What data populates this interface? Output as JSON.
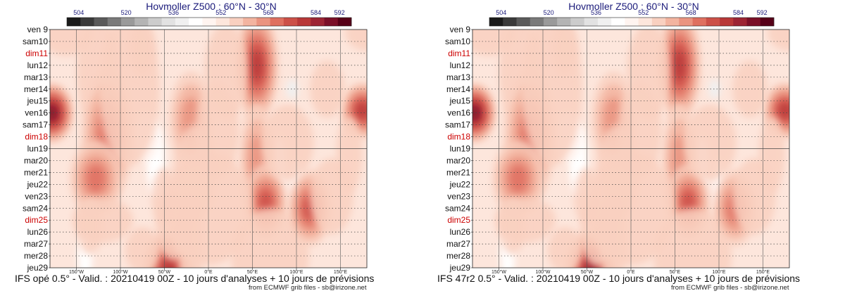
{
  "colors": {
    "weekday": "#111111",
    "sunday": "#cc0000",
    "title": "#1a1a7a",
    "scale": [
      "#1a1a1a",
      "#3a3a3a",
      "#5a5a5a",
      "#7a7a7a",
      "#9a9a9a",
      "#b4b4b4",
      "#cccccc",
      "#e2e2e2",
      "#f0f0f0",
      "#ffffff",
      "#fff4f0",
      "#fde6dc",
      "#f9d0c0",
      "#f3b4a0",
      "#ea9480",
      "#df7060",
      "#cc5048",
      "#b83838",
      "#9c2434",
      "#7a0f28",
      "#560018"
    ]
  },
  "icons": [
    "colorbar-icon"
  ],
  "chart_data": [
    {
      "type": "heatmap",
      "title": "Hovmoller Z500 : 60°N - 30°N",
      "caption": "IFS opé 0.5° - Valid. : 20210419 00Z - 10 jours d'analyses + 10 jours de prévisions",
      "credit": "from ECMWF grib files - sb@irizone.net",
      "colorbar": {
        "ticks": [
          504,
          520,
          536,
          552,
          568,
          584,
          592
        ],
        "range": [
          500,
          596
        ]
      },
      "xaxis": {
        "ticks": [
          "150°W",
          "100°W",
          "50°W",
          "0°E",
          "50°E",
          "100°E",
          "150°E"
        ],
        "tick_values": [
          -150,
          -100,
          -50,
          0,
          50,
          100,
          150
        ],
        "range": [
          -180,
          180
        ]
      },
      "yaxis": {
        "labels": [
          "ven 9",
          "sam10",
          "dim11",
          "lun12",
          "mar13",
          "mer14",
          "jeu15",
          "ven16",
          "sam17",
          "dim18",
          "lun19",
          "mar20",
          "mer21",
          "jeu22",
          "ven23",
          "sam24",
          "dim25",
          "lun26",
          "mar27",
          "mer28",
          "jeu29"
        ],
        "sundays": [
          "dim11",
          "dim18",
          "dim25"
        ],
        "divider_after": "lun19"
      },
      "blobs": [
        {
          "lon": -162,
          "day": 0.3,
          "rl": 12,
          "rd": 1.2,
          "v": 10
        },
        {
          "lon": -178,
          "day": 7.0,
          "rl": 10,
          "rd": 1.6,
          "v": 19
        },
        {
          "lon": -125,
          "day": 3.5,
          "rl": 10,
          "rd": 3.0,
          "v": 12
        },
        {
          "lon": -115,
          "day": 9.0,
          "rl": 12,
          "rd": 3.5,
          "v": 15
        },
        {
          "lon": -128,
          "day": 12.5,
          "rl": 12,
          "rd": 2.0,
          "v": 15
        },
        {
          "lon": -90,
          "day": 5.0,
          "rl": 14,
          "rd": 4.0,
          "v": 7
        },
        {
          "lon": -120,
          "day": 16.0,
          "rl": 14,
          "rd": 1.2,
          "v": 12
        },
        {
          "lon": -75,
          "day": 1.5,
          "rl": 6,
          "rd": 1.5,
          "v": 12
        },
        {
          "lon": -20,
          "day": 7.5,
          "rl": 10,
          "rd": 2.5,
          "v": 14
        },
        {
          "lon": -15,
          "day": 12.0,
          "rl": 10,
          "rd": 2.5,
          "v": 12
        },
        {
          "lon": -45,
          "day": 20.0,
          "rl": 12,
          "rd": 2.0,
          "v": 17
        },
        {
          "lon": -40,
          "day": 16.5,
          "rl": 8,
          "rd": 1.8,
          "v": 11
        },
        {
          "lon": -20,
          "day": 18.0,
          "rl": 6,
          "rd": 2.5,
          "v": 10
        },
        {
          "lon": 55,
          "day": 3.0,
          "rl": 10,
          "rd": 3.0,
          "v": 17
        },
        {
          "lon": 55,
          "day": 11.0,
          "rl": 8,
          "rd": 3.0,
          "v": 14
        },
        {
          "lon": 65,
          "day": 14.5,
          "rl": 10,
          "rd": 2.0,
          "v": 16
        },
        {
          "lon": 70,
          "day": 19.0,
          "rl": 18,
          "rd": 2.5,
          "v": 12
        },
        {
          "lon": 115,
          "day": 15.0,
          "rl": 10,
          "rd": 2.0,
          "v": 16
        },
        {
          "lon": 175,
          "day": 6.8,
          "rl": 10,
          "rd": 1.5,
          "v": 17
        },
        {
          "lon": 160,
          "day": 10.5,
          "rl": 6,
          "rd": 2.0,
          "v": 11
        },
        {
          "lon": 20,
          "day": 3.5,
          "rl": 10,
          "rd": 2.5,
          "v": 10
        },
        {
          "lon": 10,
          "day": 8.5,
          "rl": 10,
          "rd": 2.5,
          "v": 11
        },
        {
          "lon": 0,
          "day": 15.0,
          "rl": 20,
          "rd": 3.0,
          "v": 9
        },
        {
          "lon": 135,
          "day": 5.0,
          "rl": 8,
          "rd": 1.5,
          "v": 7
        },
        {
          "lon": 140,
          "day": 14.0,
          "rl": 10,
          "rd": 2.0,
          "v": 6
        },
        {
          "lon": -135,
          "day": 16.5,
          "rl": 6,
          "rd": 1.5,
          "v": 8
        },
        {
          "lon": -50,
          "day": 14.0,
          "rl": 6,
          "rd": 1.5,
          "v": 8
        },
        {
          "lon": -75,
          "day": 18.5,
          "rl": 8,
          "rd": 1.2,
          "v": 7
        },
        {
          "lon": 90,
          "day": 9.5,
          "rl": 12,
          "rd": 2.0,
          "v": 8
        },
        {
          "lon": 180,
          "day": 0.2,
          "rl": 10,
          "rd": 1.0,
          "v": 8
        }
      ]
    },
    {
      "type": "heatmap",
      "title": "Hovmoller Z500 : 60°N - 30°N",
      "caption": "IFS 47r2 0.5° - Valid. : 20210419 00Z - 10 jours d'analyses + 10 jours de prévisions",
      "credit": "from ECMWF grib files - sb@irizone.net",
      "colorbar": {
        "ticks": [
          504,
          520,
          536,
          552,
          568,
          584,
          592
        ],
        "range": [
          500,
          596
        ]
      },
      "xaxis": {
        "ticks": [
          "150°W",
          "100°W",
          "50°W",
          "0°E",
          "50°E",
          "100°E",
          "150°E"
        ],
        "tick_values": [
          -150,
          -100,
          -50,
          0,
          50,
          100,
          150
        ],
        "range": [
          -180,
          180
        ]
      },
      "yaxis": {
        "labels": [
          "ven 9",
          "sam10",
          "dim11",
          "lun12",
          "mar13",
          "mer14",
          "jeu15",
          "ven16",
          "sam17",
          "dim18",
          "lun19",
          "mar20",
          "mer21",
          "jeu22",
          "ven23",
          "sam24",
          "dim25",
          "lun26",
          "mar27",
          "mer28",
          "jeu29"
        ],
        "sundays": [
          "dim11",
          "dim18",
          "dim25"
        ],
        "divider_after": "lun19"
      },
      "blobs": [
        {
          "lon": -162,
          "day": 0.3,
          "rl": 12,
          "rd": 1.2,
          "v": 10
        },
        {
          "lon": -178,
          "day": 7.0,
          "rl": 10,
          "rd": 1.6,
          "v": 19
        },
        {
          "lon": -125,
          "day": 3.5,
          "rl": 10,
          "rd": 3.0,
          "v": 12
        },
        {
          "lon": -115,
          "day": 9.0,
          "rl": 12,
          "rd": 3.5,
          "v": 15
        },
        {
          "lon": -128,
          "day": 12.5,
          "rl": 12,
          "rd": 2.0,
          "v": 15
        },
        {
          "lon": -90,
          "day": 5.0,
          "rl": 14,
          "rd": 4.0,
          "v": 7
        },
        {
          "lon": -120,
          "day": 16.0,
          "rl": 14,
          "rd": 1.2,
          "v": 12
        },
        {
          "lon": -75,
          "day": 1.5,
          "rl": 6,
          "rd": 1.5,
          "v": 12
        },
        {
          "lon": -20,
          "day": 7.5,
          "rl": 10,
          "rd": 2.5,
          "v": 14
        },
        {
          "lon": -15,
          "day": 12.0,
          "rl": 10,
          "rd": 2.5,
          "v": 12
        },
        {
          "lon": -45,
          "day": 20.0,
          "rl": 12,
          "rd": 2.0,
          "v": 18
        },
        {
          "lon": -38,
          "day": 17.0,
          "rl": 8,
          "rd": 1.8,
          "v": 12
        },
        {
          "lon": -20,
          "day": 18.0,
          "rl": 6,
          "rd": 2.5,
          "v": 11
        },
        {
          "lon": 55,
          "day": 3.0,
          "rl": 10,
          "rd": 3.0,
          "v": 17
        },
        {
          "lon": 55,
          "day": 11.0,
          "rl": 8,
          "rd": 3.0,
          "v": 14
        },
        {
          "lon": 65,
          "day": 14.5,
          "rl": 10,
          "rd": 2.0,
          "v": 16
        },
        {
          "lon": 70,
          "day": 19.0,
          "rl": 18,
          "rd": 2.5,
          "v": 12
        },
        {
          "lon": 118,
          "day": 15.0,
          "rl": 10,
          "rd": 2.0,
          "v": 15
        },
        {
          "lon": 175,
          "day": 6.8,
          "rl": 10,
          "rd": 1.5,
          "v": 17
        },
        {
          "lon": 160,
          "day": 10.5,
          "rl": 6,
          "rd": 2.0,
          "v": 11
        },
        {
          "lon": 20,
          "day": 3.5,
          "rl": 10,
          "rd": 2.5,
          "v": 10
        },
        {
          "lon": 10,
          "day": 8.5,
          "rl": 10,
          "rd": 2.5,
          "v": 11
        },
        {
          "lon": 0,
          "day": 15.0,
          "rl": 20,
          "rd": 3.0,
          "v": 9
        },
        {
          "lon": 135,
          "day": 5.0,
          "rl": 8,
          "rd": 1.5,
          "v": 7
        },
        {
          "lon": 140,
          "day": 14.0,
          "rl": 10,
          "rd": 2.0,
          "v": 6
        },
        {
          "lon": -135,
          "day": 16.5,
          "rl": 6,
          "rd": 1.5,
          "v": 8
        },
        {
          "lon": -50,
          "day": 14.0,
          "rl": 6,
          "rd": 1.5,
          "v": 8
        },
        {
          "lon": -75,
          "day": 18.5,
          "rl": 8,
          "rd": 1.2,
          "v": 7
        },
        {
          "lon": 90,
          "day": 9.5,
          "rl": 12,
          "rd": 2.0,
          "v": 8
        },
        {
          "lon": 180,
          "day": 0.2,
          "rl": 10,
          "rd": 1.0,
          "v": 8
        }
      ]
    }
  ]
}
